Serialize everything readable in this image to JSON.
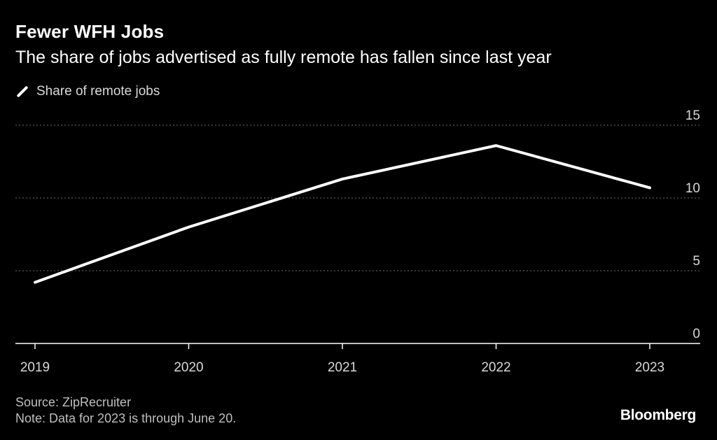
{
  "header": {
    "title": "Fewer WFH Jobs",
    "subtitle": "The share of jobs advertised as fully remote has fallen since last year"
  },
  "legend": {
    "label": "Share of remote jobs"
  },
  "footer": {
    "source": "Source: ZipRecruiter",
    "note": "Note: Data for 2023 is through June 20."
  },
  "brand": {
    "name": "Bloomberg"
  },
  "colors": {
    "background": "#000000",
    "line": "#ffffff",
    "grid": "#6e6e6e",
    "axis": "#ffffff"
  },
  "chart_data": {
    "type": "line",
    "title": "Fewer WFH Jobs",
    "subtitle": "The share of jobs advertised as fully remote has fallen since last year",
    "xlabel": "",
    "ylabel": "",
    "x": [
      "2019",
      "2020",
      "2021",
      "2022",
      "2023"
    ],
    "series": [
      {
        "name": "Share of remote jobs",
        "values": [
          4.2,
          8.0,
          11.3,
          13.6,
          10.7
        ]
      }
    ],
    "ylim": [
      0,
      15
    ],
    "yticks": [
      0,
      5,
      10,
      15
    ],
    "ytick_labels": [
      "0",
      "5",
      "10",
      "15"
    ],
    "y_axis_side": "right",
    "grid": true,
    "legend_position": "top-left"
  }
}
